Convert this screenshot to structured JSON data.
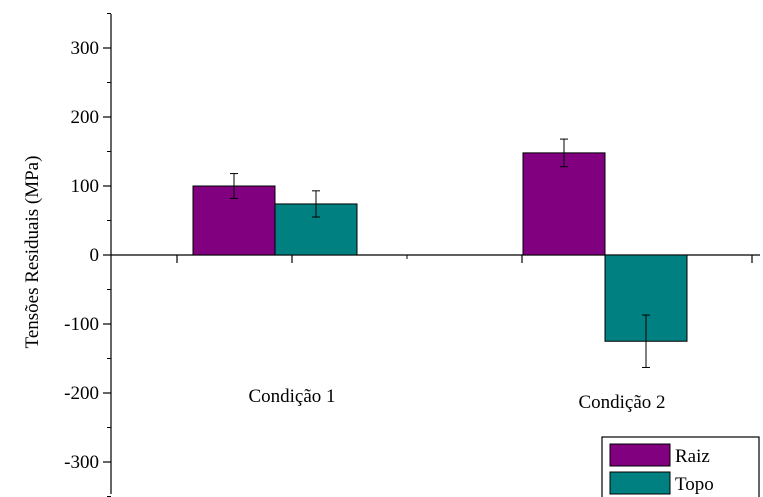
{
  "chart_data": {
    "type": "bar",
    "title": "",
    "xlabel": "",
    "ylabel": "Tensões Residuais (MPa)",
    "ylim": [
      -340,
      350
    ],
    "yticks": [
      -300,
      -200,
      -100,
      0,
      100,
      200,
      300
    ],
    "grid": false,
    "legend_position": "bottom-right",
    "categories": [
      "Condição 1",
      "Condição 2"
    ],
    "series": [
      {
        "name": "Raiz",
        "color": "#800080",
        "values": [
          100,
          148
        ],
        "errors": [
          18,
          20
        ]
      },
      {
        "name": "Topo",
        "color": "#008080",
        "values": [
          74,
          -125
        ],
        "errors": [
          19,
          38
        ]
      }
    ]
  }
}
